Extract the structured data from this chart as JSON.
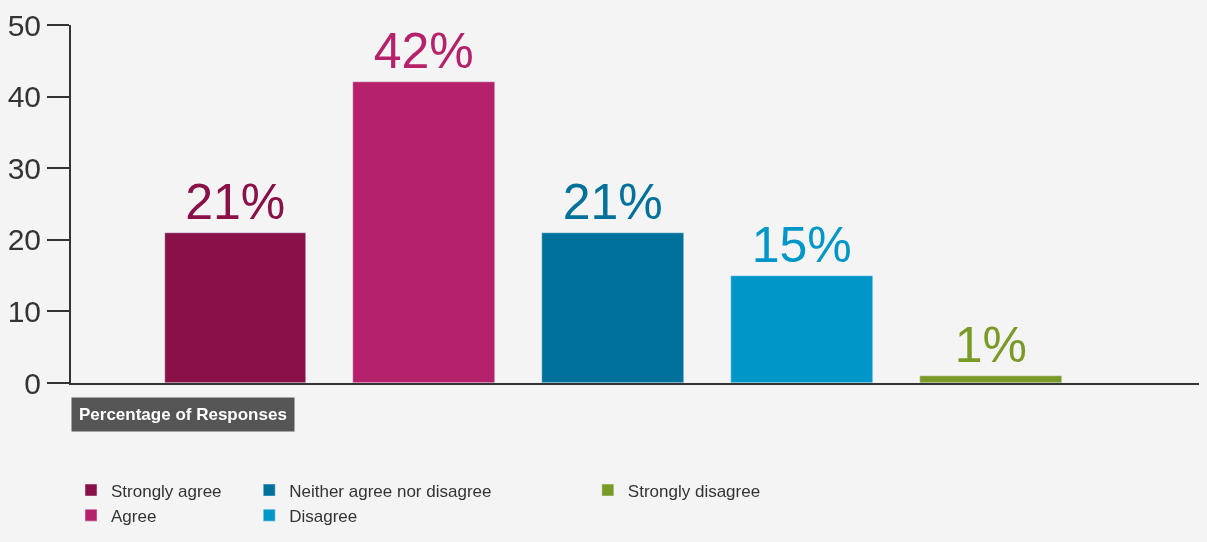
{
  "chart_data": {
    "type": "bar",
    "xlabel": "Percentage of Responses",
    "categories": [
      null,
      null,
      null,
      null,
      null
    ],
    "series": [
      {
        "name": "Strongly agree",
        "color": "#8a1048",
        "values": [
          21,
          null,
          null,
          null,
          null
        ],
        "value_labels": [
          "21%",
          null,
          null,
          null,
          null
        ]
      },
      {
        "name": "Agree",
        "color": "#b5226b",
        "values": [
          null,
          42,
          null,
          null,
          null
        ],
        "value_labels": [
          null,
          "42%",
          null,
          null,
          null
        ]
      },
      {
        "name": "Neither agree nor disagree",
        "color": "#00719a",
        "values": [
          null,
          null,
          21,
          null,
          null
        ],
        "value_labels": [
          null,
          null,
          "21%",
          null,
          null
        ]
      },
      {
        "name": "Disagree",
        "color": "#0096c8",
        "values": [
          null,
          null,
          null,
          15,
          null
        ],
        "value_labels": [
          null,
          null,
          null,
          "15%",
          null
        ]
      },
      {
        "name": "Strongly disagree",
        "color": "#7a9a28",
        "values": [
          null,
          null,
          null,
          null,
          1
        ],
        "value_labels": [
          null,
          null,
          null,
          null,
          "1%"
        ]
      }
    ],
    "ylim": [
      0,
      50
    ],
    "yticks": [
      0,
      10,
      20,
      30,
      40,
      50
    ],
    "grid": false,
    "legend": "bottom"
  }
}
